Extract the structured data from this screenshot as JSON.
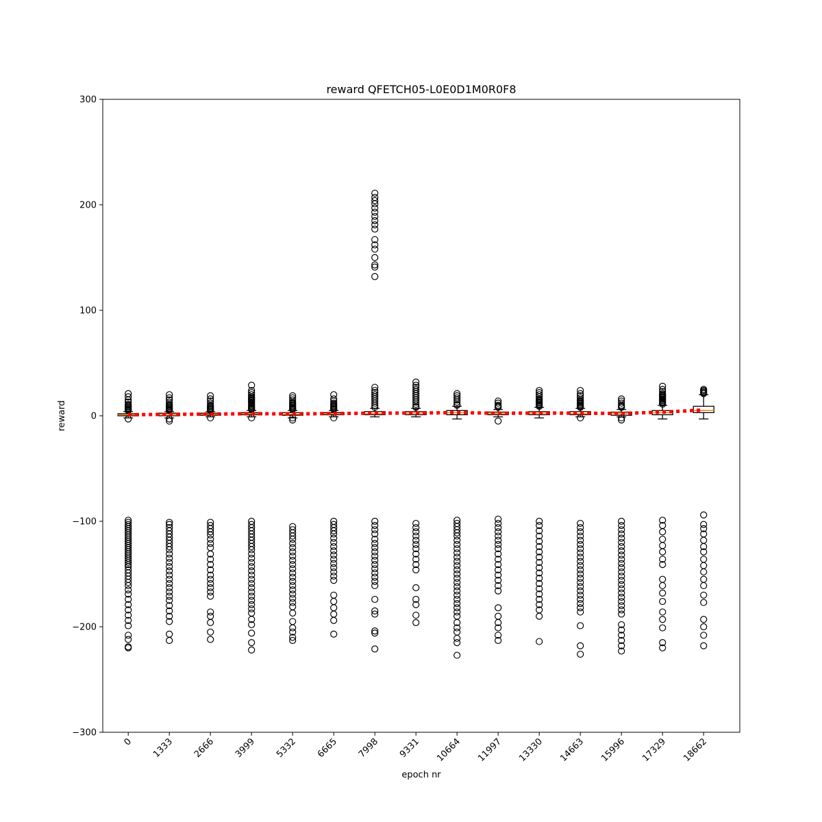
{
  "chart_data": {
    "type": "box",
    "title": "reward QFETCH05-L0E0D1M0R0F8",
    "xlabel": "epoch nr",
    "ylabel": "reward",
    "ylim": [
      -300,
      300
    ],
    "yticks": [
      -300,
      -200,
      -100,
      0,
      100,
      200,
      300
    ],
    "yticklabels": [
      "−300",
      "−200",
      "−100",
      "0",
      "100",
      "200",
      "300"
    ],
    "categories": [
      "0",
      "1333",
      "2666",
      "3999",
      "5332",
      "6665",
      "7998",
      "9331",
      "10664",
      "11997",
      "13330",
      "14663",
      "15996",
      "17329",
      "18662"
    ],
    "boxes": [
      {
        "q1": 0,
        "median": 1,
        "q3": 2,
        "whislo": -2,
        "whishi": 4,
        "mean": 1.0
      },
      {
        "q1": 0,
        "median": 1.5,
        "q3": 2.5,
        "whislo": -2,
        "whishi": 4,
        "mean": 1.4
      },
      {
        "q1": 0.5,
        "median": 1.5,
        "q3": 2.5,
        "whislo": -1,
        "whishi": 4,
        "mean": 1.6
      },
      {
        "q1": 1,
        "median": 2,
        "q3": 3,
        "whislo": -1,
        "whishi": 5,
        "mean": 2.0
      },
      {
        "q1": 0.5,
        "median": 1.5,
        "q3": 3,
        "whislo": -2,
        "whishi": 5,
        "mean": 1.8
      },
      {
        "q1": 1,
        "median": 2,
        "q3": 3,
        "whislo": -1,
        "whishi": 5,
        "mean": 2.1
      },
      {
        "q1": 1,
        "median": 2,
        "q3": 4,
        "whislo": -1,
        "whishi": 7,
        "mean": 2.5
      },
      {
        "q1": 1,
        "median": 2.5,
        "q3": 4,
        "whislo": -1,
        "whishi": 7,
        "mean": 2.6
      },
      {
        "q1": 1,
        "median": 3,
        "q3": 5,
        "whislo": -3,
        "whishi": 9,
        "mean": 3.0
      },
      {
        "q1": 1,
        "median": 2,
        "q3": 3.5,
        "whislo": -1,
        "whishi": 6,
        "mean": 2.4
      },
      {
        "q1": 1,
        "median": 2.5,
        "q3": 4,
        "whislo": -2,
        "whishi": 8,
        "mean": 2.6
      },
      {
        "q1": 1,
        "median": 2,
        "q3": 4,
        "whislo": -1,
        "whishi": 7,
        "mean": 2.5
      },
      {
        "q1": 0.5,
        "median": 2,
        "q3": 3.5,
        "whislo": -1,
        "whishi": 6,
        "mean": 2.2
      },
      {
        "q1": 1,
        "median": 3,
        "q3": 5,
        "whislo": -3,
        "whishi": 10,
        "mean": 3.5
      },
      {
        "q1": 3,
        "median": 5,
        "q3": 9,
        "whislo": -3,
        "whishi": 20,
        "mean": 5.5
      }
    ],
    "outliers": [
      [
        21,
        18,
        15,
        13,
        11,
        10,
        9,
        8,
        7,
        6,
        5,
        -3,
        -99,
        -101,
        -103,
        -105,
        -107,
        -109,
        -111,
        -113,
        -115,
        -117,
        -119,
        -121,
        -123,
        -125,
        -127,
        -129,
        -131,
        -133,
        -135,
        -137,
        -139,
        -141,
        -143,
        -146,
        -149,
        -152,
        -155,
        -158,
        -161,
        -165,
        -169,
        -174,
        -179,
        -184,
        -189,
        -194,
        -199,
        -208,
        -212,
        -219,
        -220
      ],
      [
        20,
        17,
        15,
        13,
        11,
        10,
        9,
        8,
        7,
        6,
        5,
        -3,
        -5,
        -101,
        -103,
        -106,
        -109,
        -112,
        -115,
        -118,
        -121,
        -124,
        -127,
        -131,
        -135,
        -139,
        -143,
        -147,
        -151,
        -155,
        -159,
        -163,
        -167,
        -171,
        -175,
        -180,
        -185,
        -190,
        -195,
        -207,
        -213
      ],
      [
        19,
        16,
        14,
        12,
        10,
        9,
        8,
        7,
        6,
        5,
        -2,
        -101,
        -104,
        -107,
        -110,
        -113,
        -117,
        -121,
        -125,
        -131,
        -136,
        -141,
        -146,
        -151,
        -155,
        -159,
        -163,
        -167,
        -171,
        -186,
        -190,
        -196,
        -205,
        -212
      ],
      [
        29,
        24,
        22,
        20,
        18,
        17,
        16,
        15,
        14,
        13,
        12,
        11,
        10,
        9,
        8,
        7,
        6,
        -2,
        -100,
        -103,
        -106,
        -109,
        -112,
        -115,
        -118,
        -121,
        -124,
        -127,
        -131,
        -135,
        -139,
        -143,
        -147,
        -151,
        -155,
        -159,
        -163,
        -167,
        -171,
        -175,
        -179,
        -183,
        -187,
        -193,
        -198,
        -206,
        -215,
        -222
      ],
      [
        19,
        17,
        15,
        13,
        12,
        11,
        10,
        9,
        8,
        7,
        6,
        -2,
        -4,
        -105,
        -108,
        -111,
        -114,
        -117,
        -121,
        -125,
        -129,
        -133,
        -137,
        -141,
        -145,
        -149,
        -153,
        -157,
        -161,
        -165,
        -169,
        -173,
        -177,
        -181,
        -187,
        -195,
        -201,
        -205,
        -210,
        -213
      ],
      [
        20,
        16,
        14,
        12,
        11,
        10,
        9,
        8,
        7,
        6,
        -2,
        -100,
        -103,
        -106,
        -109,
        -112,
        -116,
        -120,
        -124,
        -128,
        -132,
        -136,
        -140,
        -144,
        -148,
        -152,
        -156,
        -170,
        -176,
        -182,
        -188,
        -194,
        -207
      ],
      [
        211,
        207,
        204,
        201,
        197,
        193,
        189,
        185,
        181,
        177,
        167,
        162,
        158,
        150,
        143,
        141,
        132,
        27,
        24,
        22,
        20,
        18,
        16,
        14,
        12,
        10,
        8,
        -100,
        -104,
        -108,
        -112,
        -117,
        -121,
        -125,
        -129,
        -133,
        -137,
        -141,
        -145,
        -149,
        -153,
        -157,
        -161,
        -174,
        -185,
        -188,
        -204,
        -206,
        -221
      ],
      [
        32,
        29,
        27,
        25,
        23,
        21,
        19,
        17,
        15,
        13,
        11,
        9,
        8,
        -102,
        -106,
        -110,
        -114,
        -118,
        -122,
        -126,
        -131,
        -136,
        -141,
        -146,
        -163,
        -174,
        -179,
        -189,
        -196
      ],
      [
        21,
        19,
        17,
        15,
        13,
        11,
        10,
        -99,
        -102,
        -105,
        -108,
        -111,
        -114,
        -118,
        -122,
        -126,
        -130,
        -134,
        -138,
        -142,
        -146,
        -150,
        -154,
        -158,
        -162,
        -166,
        -170,
        -174,
        -178,
        -182,
        -186,
        -190,
        -196,
        -201,
        -205,
        -211,
        -215,
        -227
      ],
      [
        14,
        12,
        10,
        9,
        8,
        -5,
        -98,
        -102,
        -106,
        -110,
        -114,
        -118,
        -122,
        -126,
        -131,
        -136,
        -141,
        -146,
        -151,
        -156,
        -161,
        -166,
        -182,
        -190,
        -196,
        -201,
        -208,
        -213
      ],
      [
        24,
        22,
        20,
        18,
        16,
        15,
        14,
        13,
        12,
        11,
        10,
        9,
        -100,
        -104,
        -109,
        -114,
        -119,
        -124,
        -129,
        -134,
        -139,
        -144,
        -149,
        -154,
        -159,
        -164,
        -169,
        -174,
        -179,
        -184,
        -190,
        -214
      ],
      [
        24,
        21,
        19,
        17,
        15,
        14,
        13,
        12,
        11,
        10,
        9,
        8,
        -2,
        -102,
        -106,
        -110,
        -114,
        -118,
        -122,
        -126,
        -130,
        -134,
        -138,
        -142,
        -146,
        -150,
        -154,
        -158,
        -162,
        -166,
        -170,
        -174,
        -178,
        -182,
        -186,
        -199,
        -218,
        -226
      ],
      [
        16,
        14,
        12,
        10,
        9,
        8,
        -2,
        -4,
        -100,
        -104,
        -108,
        -112,
        -116,
        -120,
        -124,
        -128,
        -132,
        -136,
        -140,
        -144,
        -148,
        -152,
        -156,
        -160,
        -164,
        -168,
        -172,
        -176,
        -180,
        -184,
        -188,
        -198,
        -203,
        -208,
        -213,
        -218,
        -223
      ],
      [
        28,
        25,
        23,
        21,
        20,
        19,
        18,
        17,
        16,
        15,
        14,
        13,
        12,
        11,
        -99,
        -104,
        -110,
        -117,
        -123,
        -129,
        -136,
        -141,
        -155,
        -161,
        -168,
        -176,
        -186,
        -193,
        -201,
        -215,
        -220
      ],
      [
        25,
        24,
        23,
        22,
        21,
        -94,
        -103,
        -107,
        -112,
        -118,
        -124,
        -129,
        -136,
        -142,
        -148,
        -155,
        -161,
        -170,
        -177,
        -193,
        -200,
        -208,
        -218
      ]
    ],
    "mean_line": {
      "color": "#ff0000",
      "style": "dotted",
      "values": [
        1.0,
        1.4,
        1.6,
        2.0,
        1.8,
        2.1,
        2.5,
        2.6,
        3.0,
        2.4,
        2.6,
        2.5,
        2.2,
        3.5,
        5.5
      ]
    },
    "colors": {
      "median": "#ff7f0e",
      "mean": "#ff0000",
      "box": "#000000"
    },
    "grid": false,
    "legend": "none"
  }
}
